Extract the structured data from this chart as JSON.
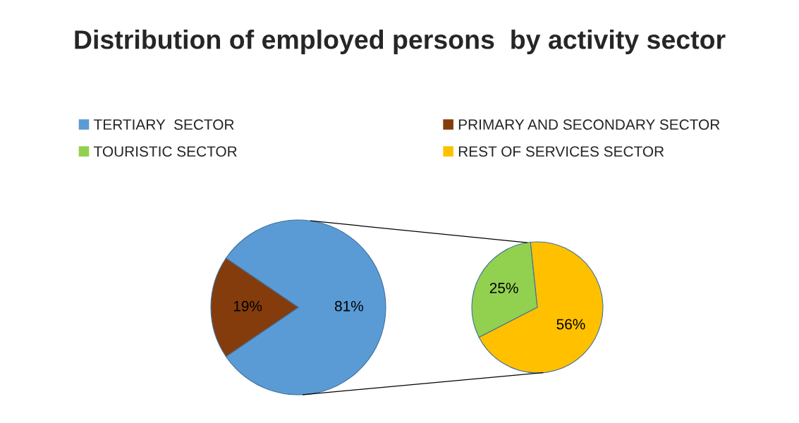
{
  "chart_data": [
    {
      "type": "pie",
      "title": "Distribution of employed persons  by activity sector",
      "categories": [
        "TERTIARY  SECTOR",
        "PRIMARY AND SECONDARY SECTOR"
      ],
      "values": [
        81,
        19
      ],
      "colors": [
        "#5b9bd5",
        "#843c0c"
      ],
      "value_labels": [
        "81%",
        "19%"
      ],
      "legend": "top"
    },
    {
      "type": "pie",
      "categories": [
        "TOURISTIC SECTOR",
        "REST OF SERVICES SECTOR"
      ],
      "values": [
        25,
        56
      ],
      "colors": [
        "#92d050",
        "#ffc000"
      ],
      "value_labels": [
        "25%",
        "56%"
      ],
      "legend": "top"
    }
  ]
}
